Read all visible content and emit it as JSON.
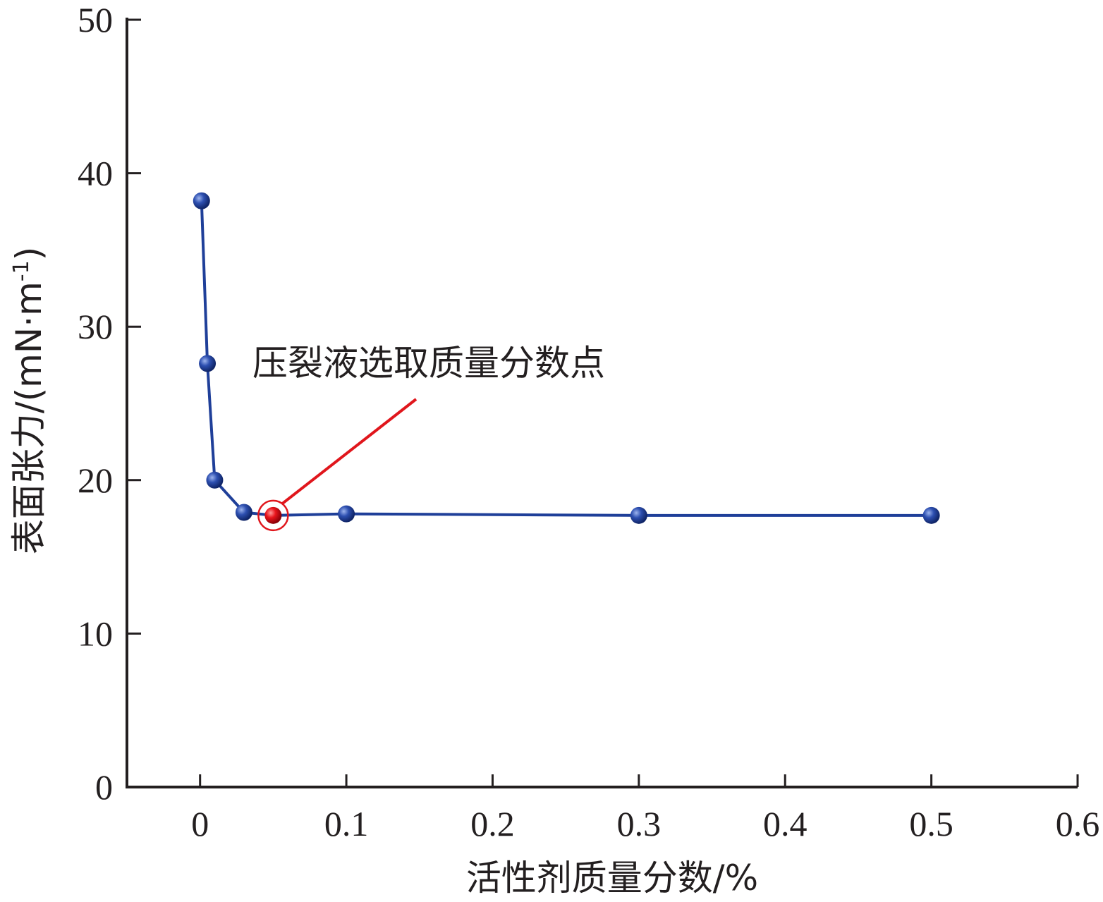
{
  "chart_data": {
    "type": "line",
    "xlabel": "活性剂质量分数/%",
    "ylabel": "表面张力/(mN·m",
    "ylabel_sup": "-1",
    "ylabel_close": ")",
    "xlim": [
      -0.05,
      0.6
    ],
    "ylim": [
      0,
      50
    ],
    "x_ticks": [
      0,
      0.1,
      0.2,
      0.3,
      0.4,
      0.5,
      0.6
    ],
    "x_tick_labels": [
      "0",
      "0.1",
      "0.2",
      "0.3",
      "0.4",
      "0.5",
      "0.6"
    ],
    "y_ticks": [
      0,
      10,
      20,
      30,
      40,
      50
    ],
    "y_tick_labels": [
      "0",
      "10",
      "20",
      "30",
      "40",
      "50"
    ],
    "grid": false,
    "series": [
      {
        "x": [
          0.001,
          0.005,
          0.01,
          0.03,
          0.05,
          0.1,
          0.3,
          0.5
        ],
        "y": [
          38.2,
          27.6,
          20.0,
          17.9,
          17.7,
          17.8,
          17.7,
          17.7
        ],
        "color": "#1f3f99"
      }
    ],
    "annotation": {
      "text": "压裂液选取质量分数点",
      "x": 0.05,
      "y": 17.7,
      "color": "#e0161c"
    }
  }
}
